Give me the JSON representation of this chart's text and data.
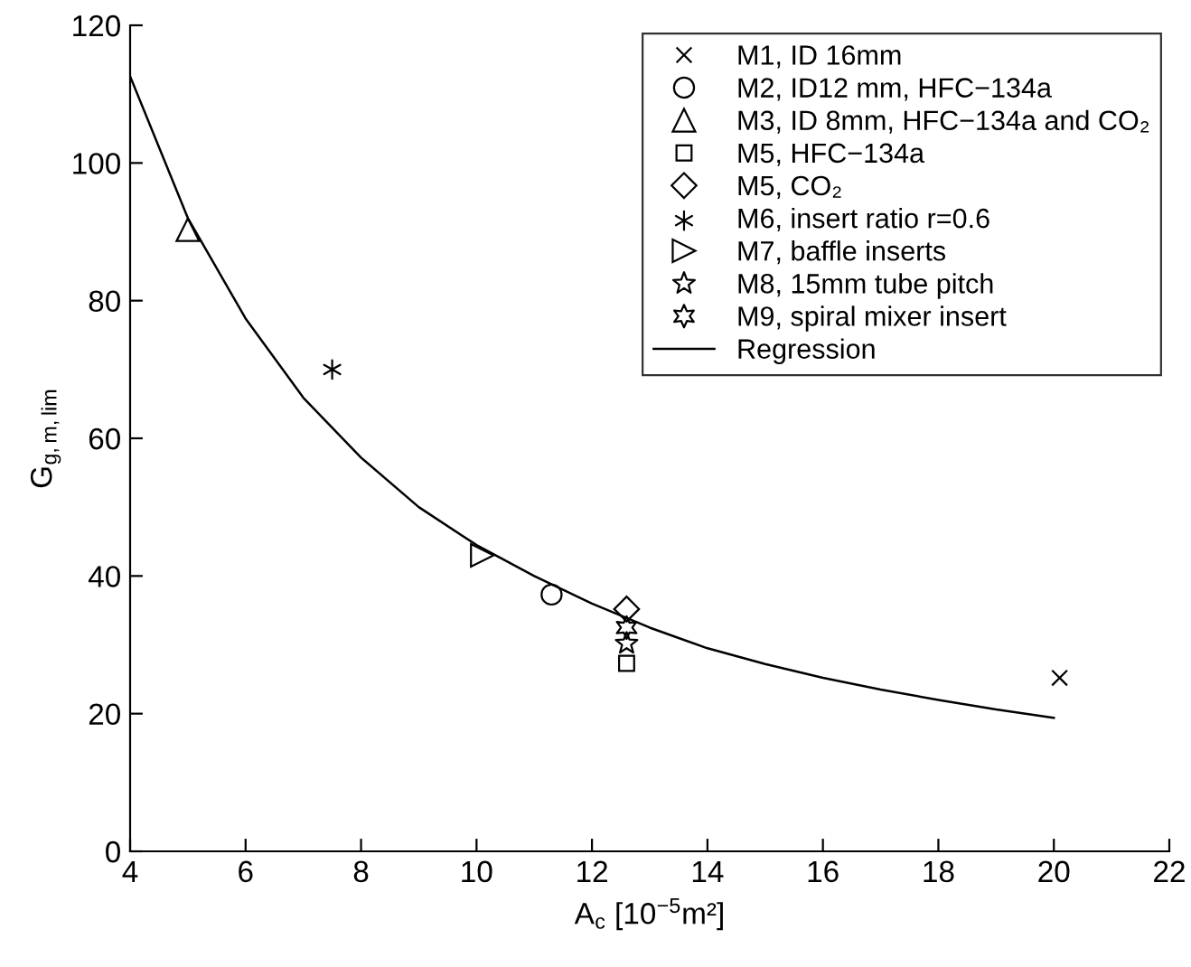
{
  "chart_data": {
    "type": "scatter",
    "xlabel": "A$_{c}$ [10$^{−5}$m²]",
    "ylabel": "G$_{g,m,lim}$",
    "xlim": [
      4,
      22
    ],
    "xticks": [
      4,
      6,
      8,
      10,
      12,
      14,
      16,
      18,
      20,
      22
    ],
    "ylim": [
      0,
      120
    ],
    "yticks": [
      0,
      20,
      40,
      60,
      80,
      100,
      120
    ],
    "grid": false,
    "legend": "top right",
    "series": [
      {
        "name": "M1, ID 16mm",
        "color": "#000000",
        "marker": "cross",
        "x": [
          20.1
        ],
        "values": [
          25.2
        ]
      },
      {
        "name": "M2, ID12 mm, HFC−134a",
        "color": "#000000",
        "marker": "circle",
        "x": [
          11.3
        ],
        "values": [
          37.3
        ]
      },
      {
        "name": "M3, ID 8mm, HFC−134a and CO₂",
        "color": "#000000",
        "marker": "triangle",
        "x": [
          5.0
        ],
        "values": [
          90.3
        ]
      },
      {
        "name": "M5, HFC−134a",
        "color": "#000000",
        "marker": "square",
        "x": [
          12.6
        ],
        "values": [
          27.3
        ]
      },
      {
        "name": "M5, CO₂",
        "color": "#000000",
        "marker": "diamond",
        "x": [
          12.6
        ],
        "values": [
          35.2
        ]
      },
      {
        "name": "M6, insert ratio r=0.6",
        "color": "#000000",
        "x": [
          7.5
        ],
        "values": [
          70
        ]
      },
      {
        "name": "M7, baffle inserts",
        "color": "#000000",
        "x": [
          10.1
        ],
        "values": [
          43
        ]
      },
      {
        "name": "M8, 15mm tube pitch",
        "color": "#000000",
        "marker": "star",
        "x": [
          12.6
        ],
        "values": [
          30.2
        ]
      },
      {
        "name": "M9, spiral mixer insert",
        "color": "#000000",
        "x": [
          12.6
        ],
        "values": [
          32.5
        ]
      },
      {
        "name": "Regression",
        "type": "line",
        "color": "#000000",
        "marker": "none",
        "line_style": "solid",
        "x": [
          4,
          5,
          6,
          7,
          8,
          9,
          10,
          11,
          12,
          13,
          14,
          15,
          16,
          17,
          18,
          19,
          20
        ],
        "values": [
          112.6,
          92,
          77.4,
          65.9,
          57.2,
          50,
          44.5,
          40,
          36,
          32.5,
          29.5,
          27.2,
          25.2,
          23.5,
          22,
          20.6,
          19.4
        ]
      }
    ]
  }
}
